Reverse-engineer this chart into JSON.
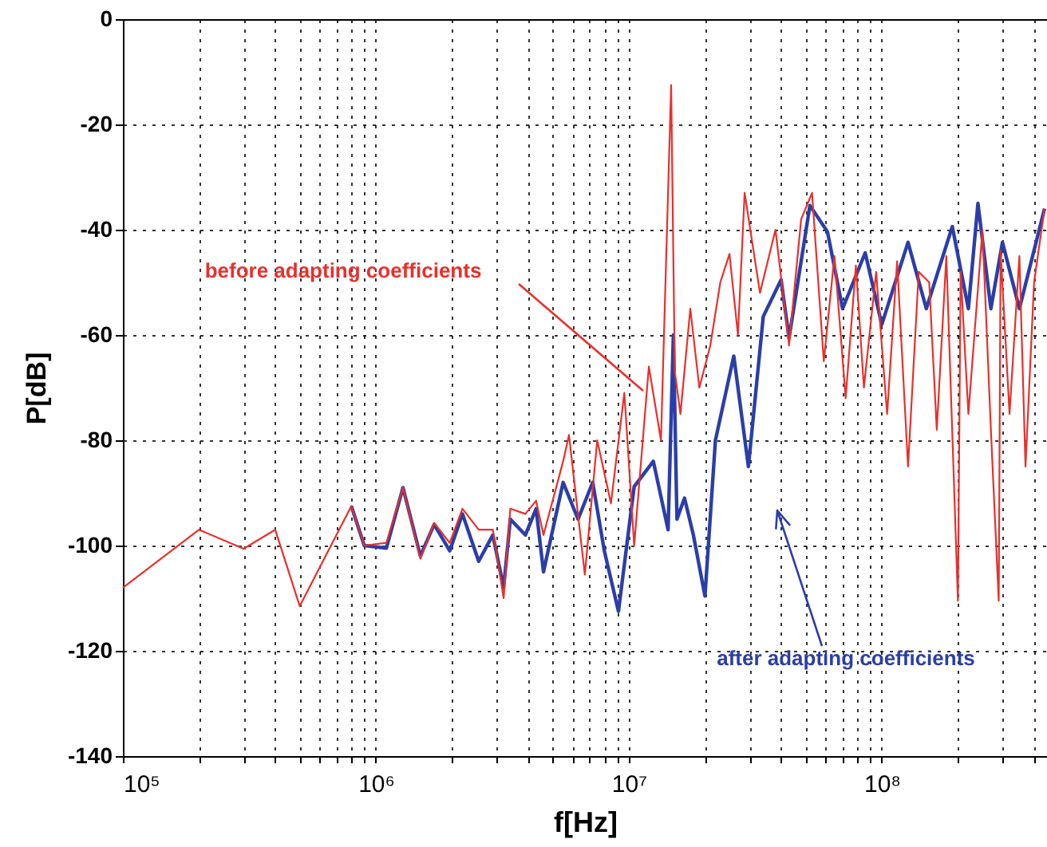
{
  "chart_data": {
    "type": "line",
    "xlabel": "f[Hz]",
    "ylabel": "P[dB]",
    "log": "x",
    "grid": true,
    "line_style": "solid",
    "marker": "none",
    "xlim": [
      100000,
      450000000
    ],
    "ylim": [
      -140,
      0
    ],
    "xticks": [
      {
        "value": 100000,
        "label": "10⁵"
      },
      {
        "value": 200000,
        "label": null
      },
      {
        "value": 300000,
        "label": null
      },
      {
        "value": 400000,
        "label": null
      },
      {
        "value": 500000,
        "label": null
      },
      {
        "value": 600000,
        "label": null
      },
      {
        "value": 700000,
        "label": null
      },
      {
        "value": 800000,
        "label": null
      },
      {
        "value": 900000,
        "label": null
      },
      {
        "value": 1000000,
        "label": "10⁶"
      },
      {
        "value": 2000000,
        "label": null
      },
      {
        "value": 3000000,
        "label": null
      },
      {
        "value": 4000000,
        "label": null
      },
      {
        "value": 5000000,
        "label": null
      },
      {
        "value": 6000000,
        "label": null
      },
      {
        "value": 7000000,
        "label": null
      },
      {
        "value": 8000000,
        "label": null
      },
      {
        "value": 9000000,
        "label": null
      },
      {
        "value": 10000000,
        "label": "10⁷"
      },
      {
        "value": 20000000,
        "label": null
      },
      {
        "value": 30000000,
        "label": null
      },
      {
        "value": 40000000,
        "label": null
      },
      {
        "value": 50000000,
        "label": null
      },
      {
        "value": 60000000,
        "label": null
      },
      {
        "value": 70000000,
        "label": null
      },
      {
        "value": 80000000,
        "label": null
      },
      {
        "value": 90000000,
        "label": null
      },
      {
        "value": 100000000,
        "label": "10⁸"
      },
      {
        "value": 200000000,
        "label": null
      },
      {
        "value": 300000000,
        "label": null
      },
      {
        "value": 400000000,
        "label": null
      }
    ],
    "yticks": [
      0,
      -20,
      -40,
      -60,
      -80,
      -100,
      -120,
      -140
    ],
    "series": [
      {
        "color": "#e8302c",
        "x": [
          100000.0,
          200000.0,
          300000.0,
          400000.0,
          500000.0,
          800000.0,
          900000.0,
          1100000.0,
          1280000.0,
          1500000.0,
          1700000.0,
          1960000.0,
          2200000.0,
          2550000.0,
          2900000.0,
          3200000.0,
          3400000.0,
          3900000.0,
          4300000.0,
          4600000.0,
          5500000.0,
          5800000.0,
          6700000.0,
          7500000.0,
          8500000.0,
          9600000.0,
          10500000.0,
          12000000.0,
          13400000.0,
          14700000.0,
          15200000.0,
          16000000.0,
          17500000.0,
          19000000.0,
          21000000.0,
          23000000.0,
          25000000.0,
          27000000.0,
          28700000.0,
          33000000.0,
          38000000.0,
          43000000.0,
          48000000.0,
          53000000.0,
          59000000.0,
          65000000.0,
          72000000.0,
          79000000.0,
          85000000.0,
          95000000.0,
          105000000.0,
          115000000.0,
          127000000.0,
          140000000.0,
          154000000.0,
          165000000.0,
          180000000.0,
          200000000.0,
          205000000.0,
          220000000.0,
          250000000.0,
          270000000.0,
          290000000.0,
          295000000.0,
          320000000.0,
          350000000.0,
          370000000.0,
          400000000.0,
          440000000.0
        ],
        "values": [
          -108,
          -97,
          -100.6,
          -97,
          -111.5,
          -92.5,
          -100,
          -99.5,
          -89,
          -102.5,
          -95.7,
          -99.5,
          -93,
          -97,
          -97,
          -110,
          -93,
          -94,
          -91.5,
          -98,
          -84,
          -79,
          -105.5,
          -80,
          -92,
          -71,
          -100,
          -66,
          -80,
          -12.5,
          -67,
          -75,
          -55,
          -70,
          -62,
          -50,
          -44.6,
          -60,
          -33,
          -52,
          -40,
          -62,
          -38,
          -33,
          -65,
          -45,
          -72,
          -46.8,
          -70,
          -48,
          -75,
          -46,
          -85,
          -48,
          -50,
          -78,
          -45,
          -110.5,
          -48,
          -75,
          -40,
          -78,
          -110.5,
          -44,
          -75,
          -45,
          -85,
          -50,
          -36
        ]
      },
      {
        "color": "#2b3ea8",
        "x": [
          800000.0,
          900000.0,
          1100000.0,
          1280000.0,
          1500000.0,
          1700000.0,
          1960000.0,
          2200000.0,
          2550000.0,
          2900000.0,
          3200000.0,
          3400000.0,
          3900000.0,
          4300000.0,
          4600000.0,
          5500000.0,
          6300000.0,
          7200000.0,
          8000000.0,
          9100000.0,
          10500000.0,
          12500000.0,
          14300000.0,
          15000000.0,
          15500000.0,
          16600000.0,
          18000000.0,
          20000000.0,
          22000000.0,
          26000000.0,
          29700000.0,
          34000000.0,
          40000000.0,
          43000000.0,
          52000000.0,
          61000000.0,
          70000000.0,
          86000000.0,
          100000000.0,
          127000000.0,
          150000000.0,
          190000000.0,
          220000000.0,
          240000000.0,
          270000000.0,
          300000000.0,
          350000000.0,
          440000000.0
        ],
        "values": [
          -92.5,
          -100,
          -100.5,
          -89,
          -102,
          -96,
          -101,
          -94,
          -103,
          -98,
          -108,
          -95,
          -98,
          -93,
          -105,
          -88,
          -95,
          -88,
          -101,
          -112.5,
          -88.8,
          -84,
          -97,
          -60,
          -95,
          -91,
          -98,
          -109.6,
          -80,
          -64,
          -85,
          -56.5,
          -49.5,
          -60.6,
          -35.4,
          -40.4,
          -55,
          -44.4,
          -58,
          -42.4,
          -55,
          -39.4,
          -55,
          -35,
          -55,
          -42.4,
          -55,
          -36
        ]
      }
    ],
    "annotations": [
      "before adapting coefficients",
      "after adapting coefficients"
    ]
  }
}
